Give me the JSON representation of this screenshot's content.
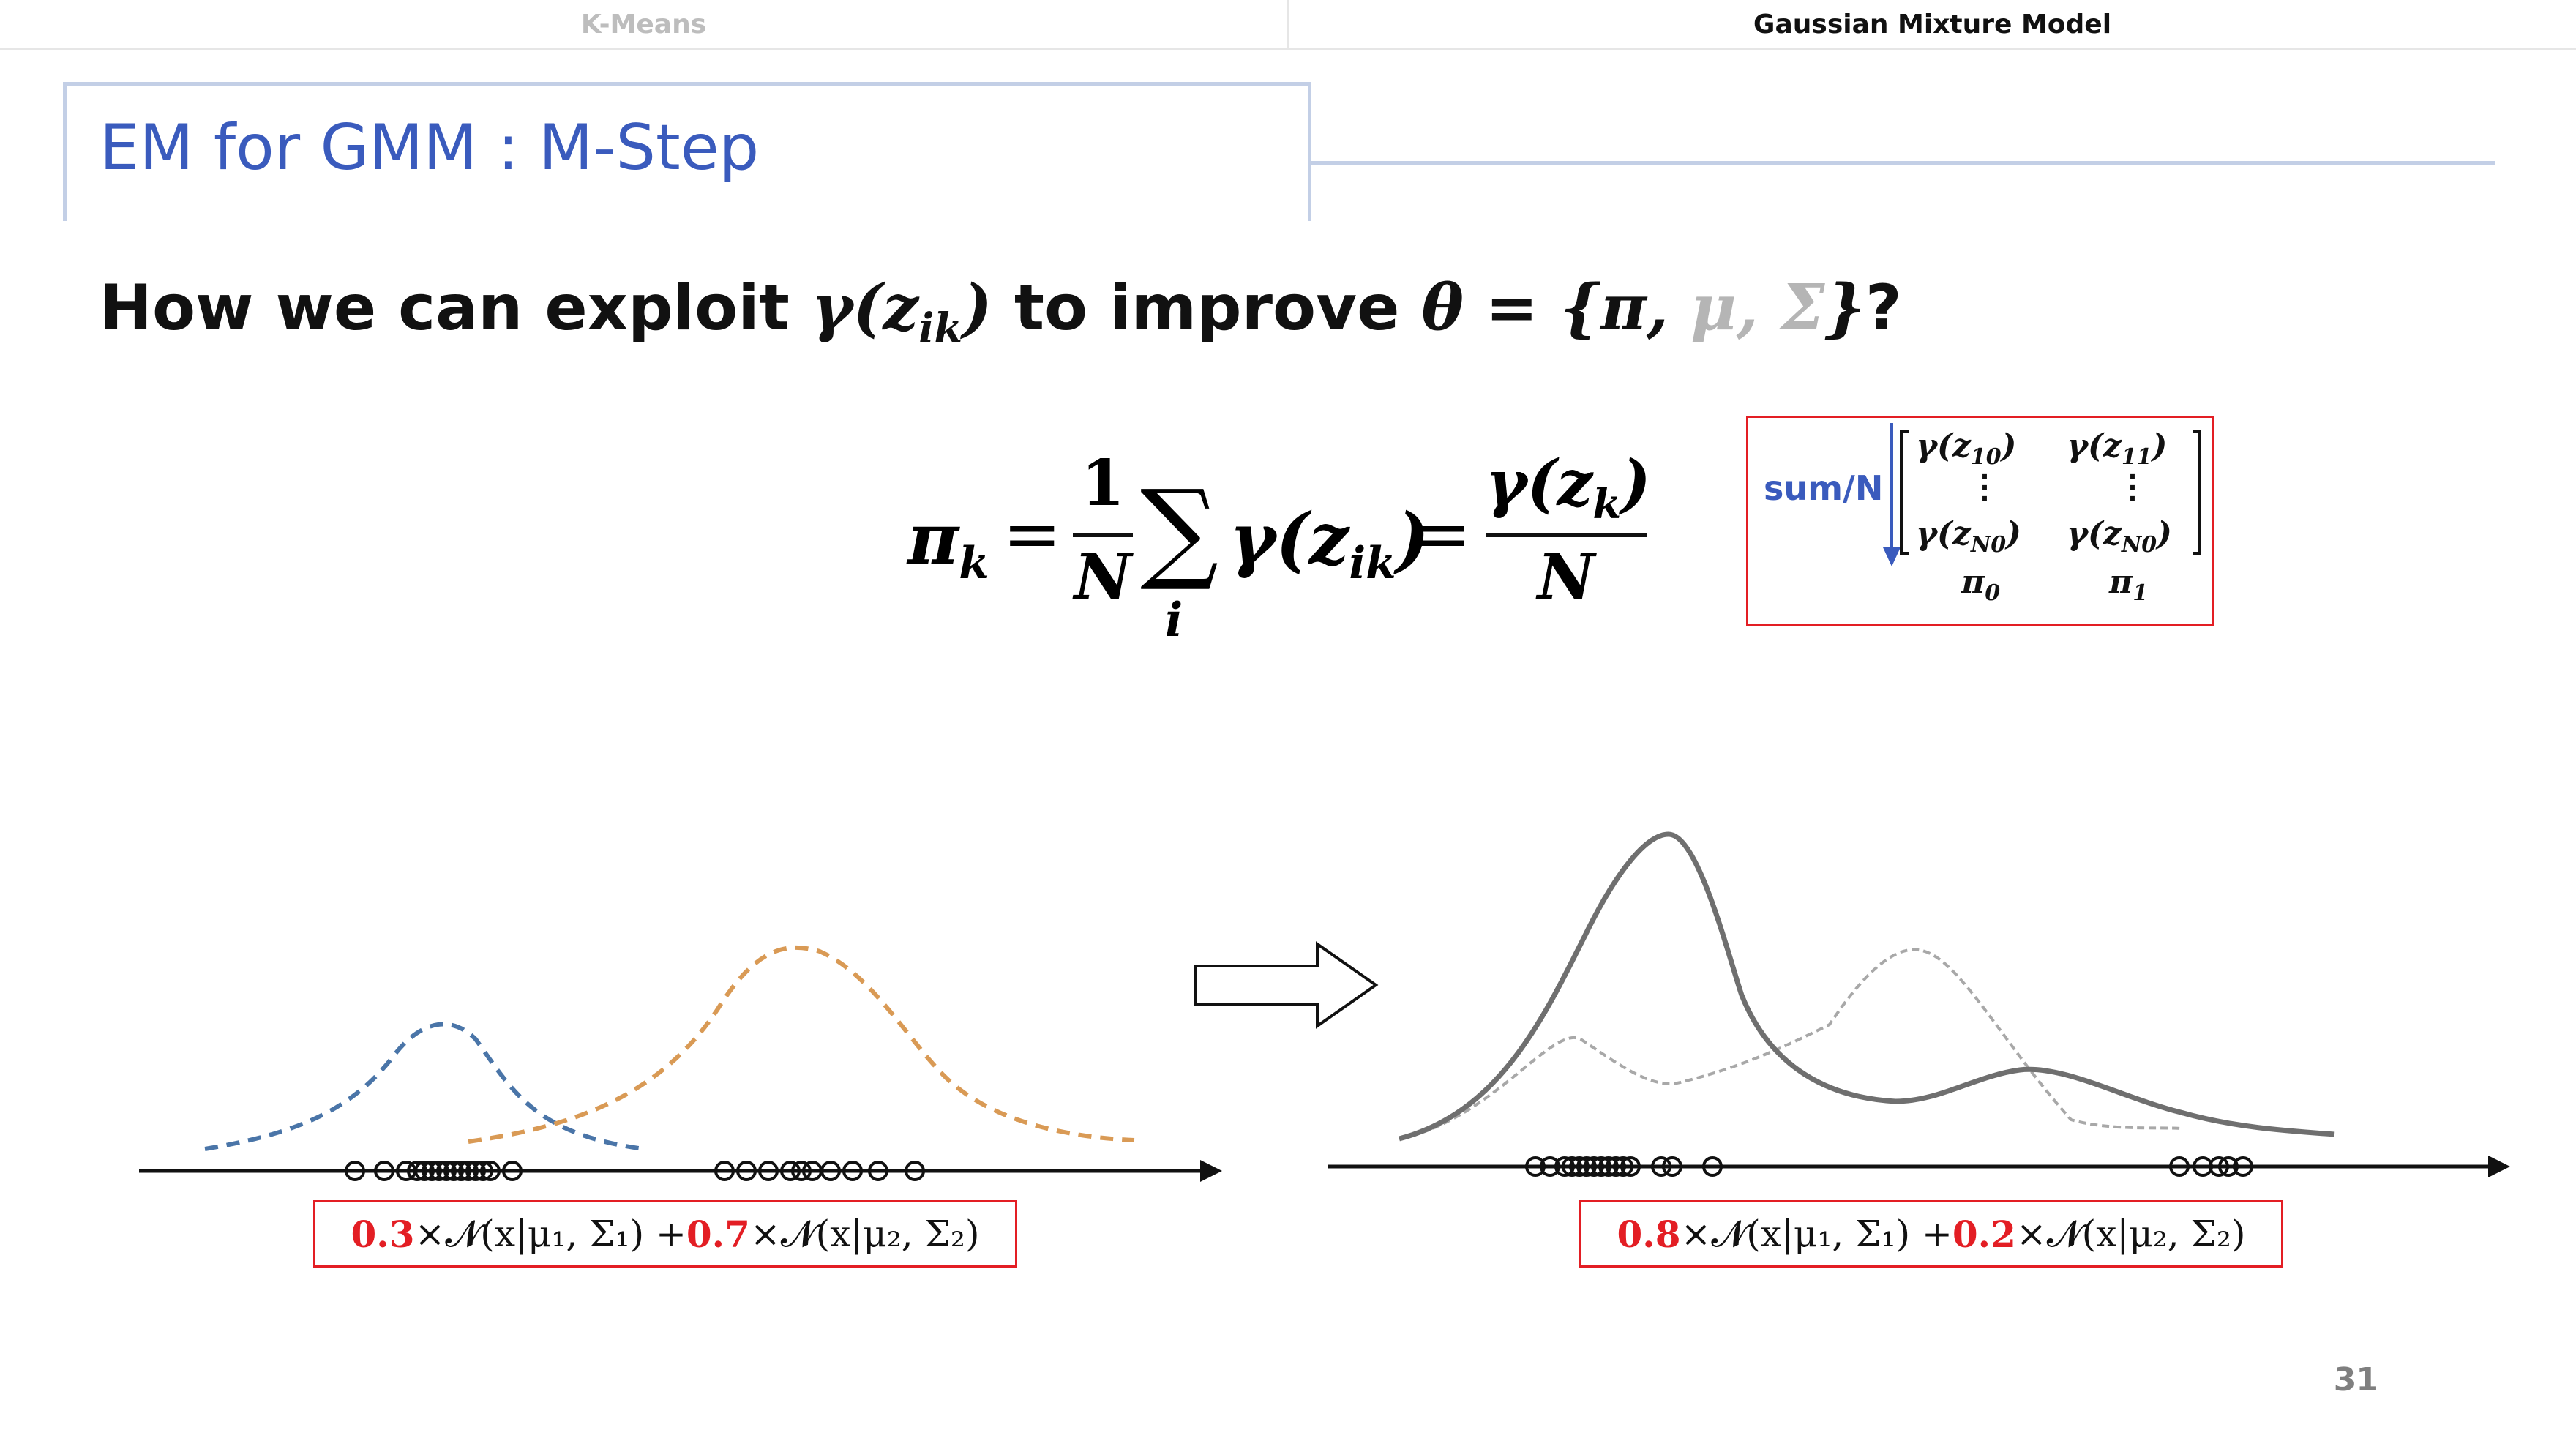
{
  "tabs": [
    {
      "label": "K-Means",
      "active": false
    },
    {
      "label": "Gaussian Mixture Model",
      "active": true
    }
  ],
  "slide": {
    "title": "EM for GMM : M-Step",
    "question_prefix": "How we can exploit ",
    "question_gamma": "γ(z",
    "question_gamma_sub": "ik",
    "question_gamma_close": ")",
    "question_middle": " to improve ",
    "question_theta": "θ = {π, ",
    "question_muted": "μ, Σ",
    "question_close": "}",
    "question_mark": "?"
  },
  "formula": {
    "lhs": "π",
    "lhs_sub": "k",
    "eq": "=",
    "frac1_num": "1",
    "frac1_den": "N",
    "sum": "∑",
    "sum_index": "i",
    "gamma": "γ(z",
    "gamma_sub": "ik",
    "gamma_close": ")",
    "eq2": "=",
    "frac2_num_prefix": "γ(z",
    "frac2_num_sub": "k",
    "frac2_num_close": ")",
    "frac2_den": "N"
  },
  "matrix_box": {
    "label": "sum/N",
    "row1_col1": "γ(z",
    "row1_col1_sub": "10",
    "row1_col2": "γ(z",
    "row1_col2_sub": "11",
    "vdots": "⋮",
    "row3_col1": "γ(z",
    "row3_col1_sub": "N0",
    "row3_col2": "γ(z",
    "row3_col2_sub": "N0",
    "close": ")",
    "pi0": "π",
    "pi0_sub": "0",
    "pi1": "π",
    "pi1_sub": "1"
  },
  "left_mixture": {
    "w1": "0.3",
    "term1": "×𝓝(x|μ₁, Σ₁) + ",
    "w2": "0.7",
    "term2": "×𝓝(x|μ₂, Σ₂)"
  },
  "right_mixture": {
    "w1": "0.8",
    "term1": "×𝓝(x|μ₁, Σ₁) + ",
    "w2": "0.2",
    "term2": "×𝓝(x|μ₂, Σ₂)"
  },
  "page_number": "31",
  "colors": {
    "accent": "#3a5bbd",
    "title_rule": "#c3cfe6",
    "highlight_red": "#e31e24",
    "blue_curve": "#4a75a8",
    "orange_curve": "#d99a55",
    "gray_curve": "#6f6f6f",
    "light_gray_curve": "#a8a8a8"
  },
  "icons": {
    "arrow": "right-arrow-icon",
    "down_arrow": "down-arrow-icon"
  }
}
